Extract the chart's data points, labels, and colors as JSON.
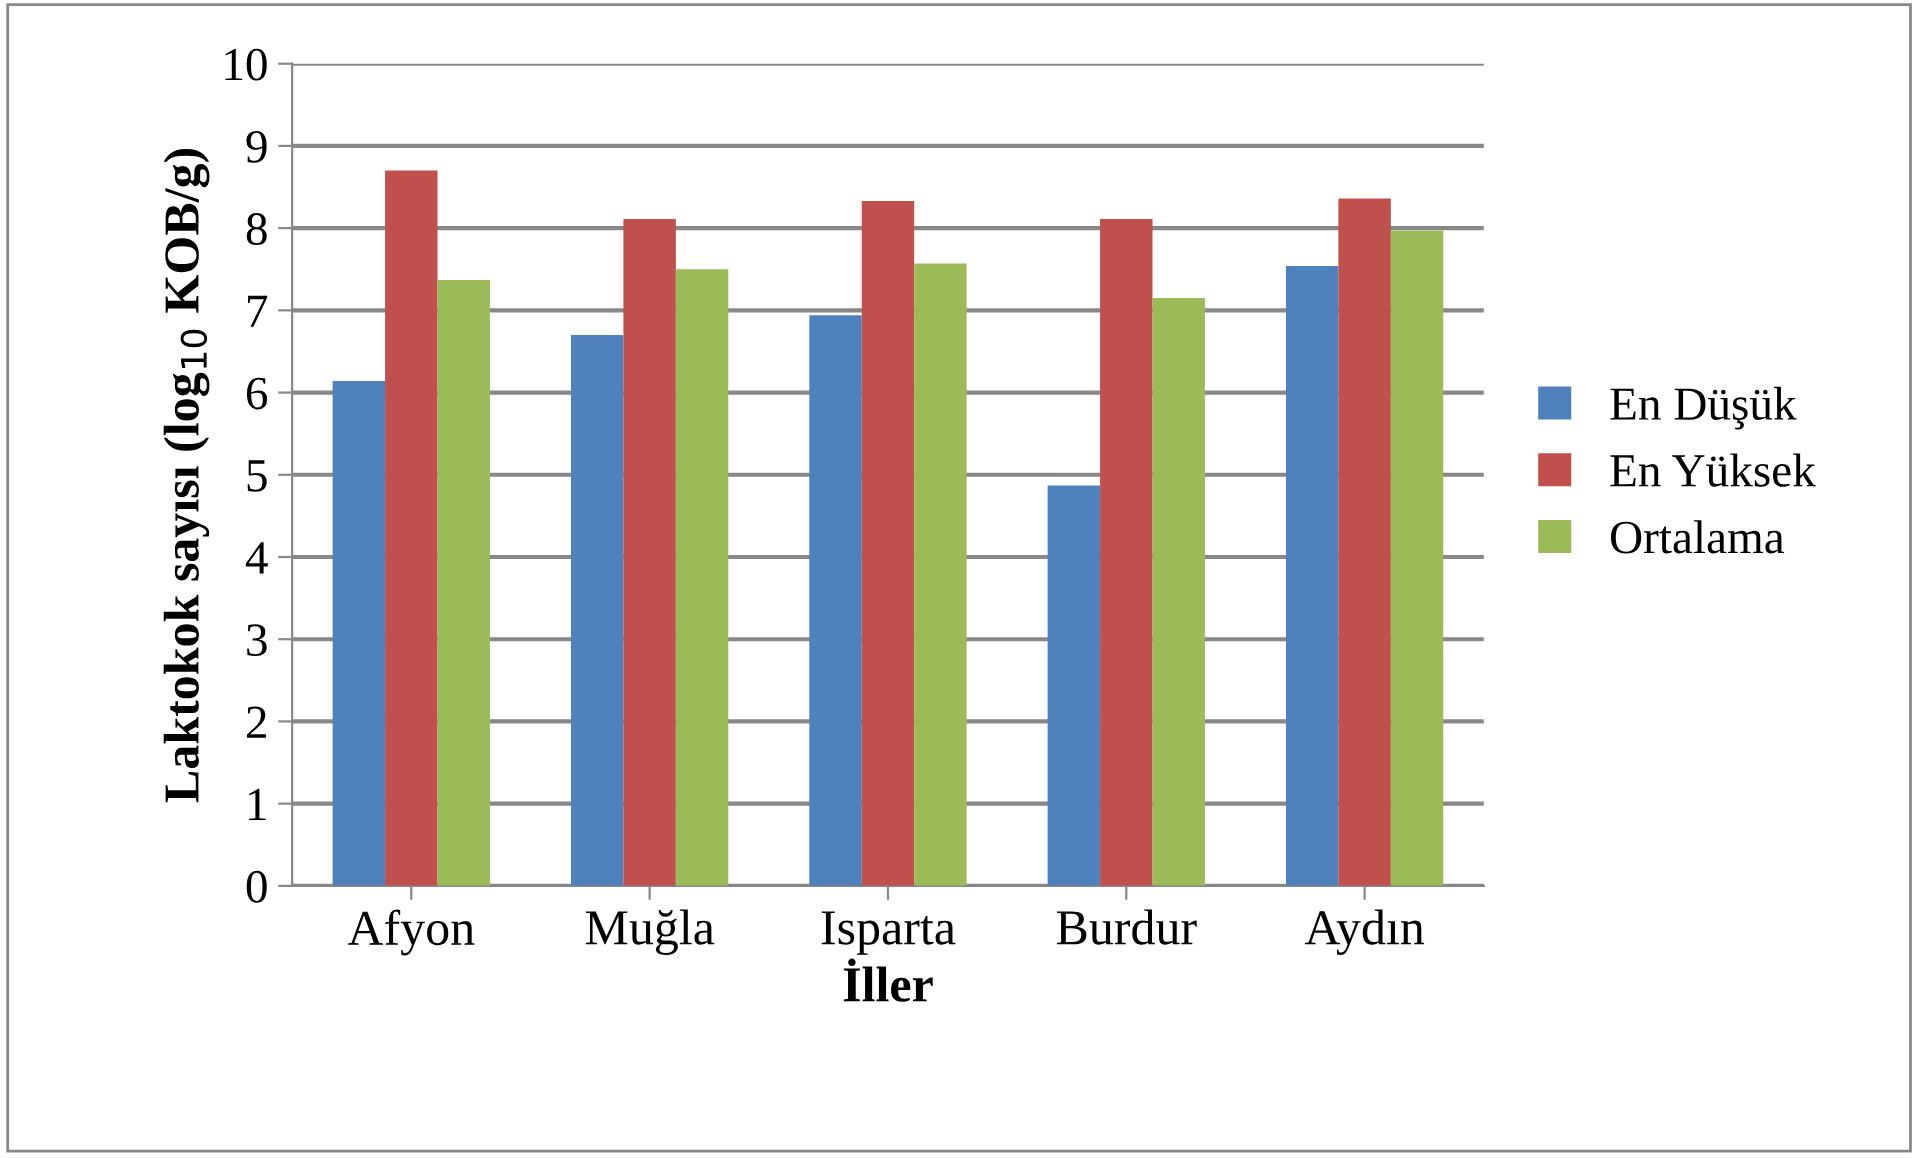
{
  "chart_data": {
    "type": "bar",
    "xlabel": "İller",
    "ylabel": "Laktokok sayısı (log$_{10}$ KOB/g)",
    "categories": [
      "Afyon",
      "Muğla",
      "Isparta",
      "Burdur",
      "Aydın"
    ],
    "series": [
      {
        "name": "En Düşük",
        "color": "#4f81bd",
        "values": [
          6.14,
          6.7,
          6.94,
          4.87,
          7.54
        ]
      },
      {
        "name": "En Yüksek",
        "color": "#c0504d",
        "values": [
          8.7,
          8.11,
          8.33,
          8.11,
          8.36
        ]
      },
      {
        "name": "Ortalama",
        "color": "#9bbb59",
        "values": [
          7.37,
          7.5,
          7.57,
          7.15,
          7.97
        ]
      }
    ],
    "ylim": [
      0,
      10
    ],
    "yticks": [
      0,
      1,
      2,
      3,
      4,
      5,
      6,
      7,
      8,
      9,
      10
    ],
    "grid": "y",
    "legend": "right"
  }
}
